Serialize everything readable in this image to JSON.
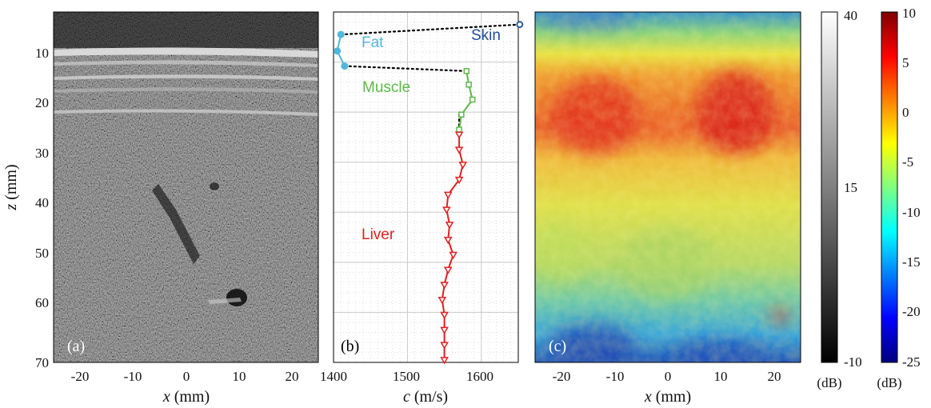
{
  "chart_data": [
    {
      "type": "image",
      "panel_label": "(a)",
      "xlabel_var": "x",
      "xlabel_unit": " (mm)",
      "ylabel_var": "z",
      "ylabel_unit": " (mm)",
      "xlim": [
        -25,
        25
      ],
      "ylim": [
        0,
        70
      ],
      "xticks": [
        "-20",
        "-10",
        "0",
        "10",
        "20"
      ],
      "yticks": [
        "10",
        "20",
        "30",
        "40",
        "50",
        "60",
        "70"
      ],
      "colormap": "gray",
      "content": "B-mode ultrasound image"
    },
    {
      "type": "line",
      "panel_label": "(b)",
      "xlabel_var": "c",
      "xlabel_unit": " (m/s)",
      "xlim": [
        1400,
        1650
      ],
      "ylim": [
        0,
        70
      ],
      "xticks": [
        "1400",
        "1500",
        "1600"
      ],
      "y_inverted": true,
      "grid": true,
      "series": [
        {
          "name": "Skin",
          "color": "#1f4e9c",
          "marker": "circle-open",
          "points": [
            [
              1652,
              2.5
            ]
          ]
        },
        {
          "name": "Fat",
          "color": "#4fb8dc",
          "marker": "circle-filled",
          "points": [
            [
              1410,
              4.5
            ],
            [
              1405,
              7.8
            ],
            [
              1415,
              10.8
            ]
          ]
        },
        {
          "name": "Muscle",
          "color": "#5cb84a",
          "marker": "square-open",
          "points": [
            [
              1580,
              11.8
            ],
            [
              1583,
              14.5
            ],
            [
              1588,
              17.5
            ],
            [
              1573,
              20.5
            ],
            [
              1570,
              23.5
            ]
          ]
        },
        {
          "name": "Liver",
          "color": "#e22020",
          "marker": "triangle-down-open",
          "points": [
            [
              1570,
              24.5
            ],
            [
              1570,
              27.5
            ],
            [
              1575,
              30.5
            ],
            [
              1570,
              33.5
            ],
            [
              1555,
              36.5
            ],
            [
              1553,
              39.5
            ],
            [
              1557,
              42.5
            ],
            [
              1555,
              45.5
            ],
            [
              1562,
              48.5
            ],
            [
              1555,
              51.5
            ],
            [
              1550,
              54.5
            ],
            [
              1547,
              57.5
            ],
            [
              1550,
              60.5
            ],
            [
              1550,
              63.5
            ],
            [
              1550,
              66.5
            ],
            [
              1550,
              69.5
            ]
          ]
        }
      ],
      "connectors": [
        {
          "from": [
            1652,
            2.5
          ],
          "to": [
            1410,
            4.5
          ]
        },
        {
          "from": [
            1415,
            10.8
          ],
          "to": [
            1580,
            11.8
          ]
        },
        {
          "from": [
            1570,
            20.5
          ],
          "to": [
            1570,
            24.5
          ]
        }
      ]
    },
    {
      "type": "heatmap",
      "panel_label": "(c)",
      "xlabel_var": "x",
      "xlabel_unit": " (mm)",
      "xlim": [
        -25,
        25
      ],
      "ylim": [
        0,
        70
      ],
      "xticks": [
        "-20",
        "-10",
        "0",
        "10",
        "20"
      ],
      "colormap": "jet",
      "content": "Parametric map overlaid on B-mode image"
    }
  ],
  "colorbars": [
    {
      "colormap": "gray",
      "ticks": [
        "40",
        "15",
        "-10"
      ],
      "range": [
        -10,
        40
      ],
      "unit": "(dB)"
    },
    {
      "colormap": "jet",
      "ticks": [
        "10",
        "5",
        "0",
        "-5",
        "-10",
        "-15",
        "-20",
        "-25"
      ],
      "range": [
        -25,
        10
      ],
      "unit": "(dB)"
    }
  ]
}
